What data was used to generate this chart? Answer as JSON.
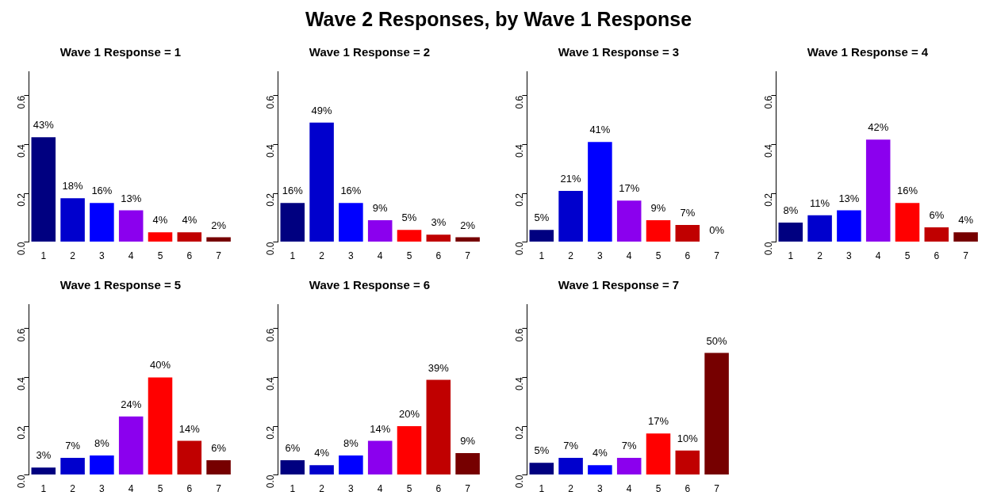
{
  "chart_data": [
    {
      "type": "other",
      "title": "Wave 2 Responses, by Wave 1 Response"
    },
    {
      "type": "bar",
      "title": "Wave 1 Response = 1",
      "categories": [
        "1",
        "2",
        "3",
        "4",
        "5",
        "6",
        "7"
      ],
      "values": [
        0.43,
        0.18,
        0.16,
        0.13,
        0.04,
        0.04,
        0.02
      ],
      "value_labels": [
        "43%",
        "18%",
        "16%",
        "13%",
        "4%",
        "4%",
        "2%"
      ],
      "colors": [
        "#000080",
        "#0000cd",
        "#0000ff",
        "#8b00ee",
        "#ff0000",
        "#c00000",
        "#760000"
      ],
      "ylim": [
        0,
        0.7
      ],
      "yticks": [
        {
          "value": 0,
          "label": "0.0"
        },
        {
          "value": 0.2,
          "label": "0.2"
        },
        {
          "value": 0.4,
          "label": "0.4"
        },
        {
          "value": 0.6,
          "label": "0.6"
        }
      ]
    },
    {
      "type": "bar",
      "title": "Wave 1 Response = 2",
      "categories": [
        "1",
        "2",
        "3",
        "4",
        "5",
        "6",
        "7"
      ],
      "values": [
        0.16,
        0.49,
        0.16,
        0.09,
        0.05,
        0.03,
        0.02
      ],
      "value_labels": [
        "16%",
        "49%",
        "16%",
        "9%",
        "5%",
        "3%",
        "2%"
      ],
      "colors": [
        "#000080",
        "#0000cd",
        "#0000ff",
        "#8b00ee",
        "#ff0000",
        "#c00000",
        "#760000"
      ],
      "ylim": [
        0,
        0.7
      ],
      "yticks": [
        {
          "value": 0,
          "label": "0.0"
        },
        {
          "value": 0.2,
          "label": "0.2"
        },
        {
          "value": 0.4,
          "label": "0.4"
        },
        {
          "value": 0.6,
          "label": "0.6"
        }
      ]
    },
    {
      "type": "bar",
      "title": "Wave 1 Response = 3",
      "categories": [
        "1",
        "2",
        "3",
        "4",
        "5",
        "6",
        "7"
      ],
      "values": [
        0.05,
        0.21,
        0.41,
        0.17,
        0.09,
        0.07,
        0
      ],
      "value_labels": [
        "5%",
        "21%",
        "41%",
        "17%",
        "9%",
        "7%",
        "0%"
      ],
      "colors": [
        "#000080",
        "#0000cd",
        "#0000ff",
        "#8b00ee",
        "#ff0000",
        "#c00000",
        "#760000"
      ],
      "ylim": [
        0,
        0.7
      ],
      "yticks": [
        {
          "value": 0,
          "label": "0.0"
        },
        {
          "value": 0.2,
          "label": "0.2"
        },
        {
          "value": 0.4,
          "label": "0.4"
        },
        {
          "value": 0.6,
          "label": "0.6"
        }
      ]
    },
    {
      "type": "bar",
      "title": "Wave 1 Response = 4",
      "categories": [
        "1",
        "2",
        "3",
        "4",
        "5",
        "6",
        "7"
      ],
      "values": [
        0.08,
        0.11,
        0.13,
        0.42,
        0.16,
        0.06,
        0.04
      ],
      "value_labels": [
        "8%",
        "11%",
        "13%",
        "42%",
        "16%",
        "6%",
        "4%"
      ],
      "colors": [
        "#000080",
        "#0000cd",
        "#0000ff",
        "#8b00ee",
        "#ff0000",
        "#c00000",
        "#760000"
      ],
      "ylim": [
        0,
        0.7
      ],
      "yticks": [
        {
          "value": 0,
          "label": "0.0"
        },
        {
          "value": 0.2,
          "label": "0.2"
        },
        {
          "value": 0.4,
          "label": "0.4"
        },
        {
          "value": 0.6,
          "label": "0.6"
        }
      ]
    },
    {
      "type": "bar",
      "title": "Wave 1 Response = 5",
      "categories": [
        "1",
        "2",
        "3",
        "4",
        "5",
        "6",
        "7"
      ],
      "values": [
        0.03,
        0.07,
        0.08,
        0.24,
        0.4,
        0.14,
        0.06
      ],
      "value_labels": [
        "3%",
        "7%",
        "8%",
        "24%",
        "40%",
        "14%",
        "6%"
      ],
      "colors": [
        "#000080",
        "#0000cd",
        "#0000ff",
        "#8b00ee",
        "#ff0000",
        "#c00000",
        "#760000"
      ],
      "ylim": [
        0,
        0.7
      ],
      "yticks": [
        {
          "value": 0,
          "label": "0.0"
        },
        {
          "value": 0.2,
          "label": "0.2"
        },
        {
          "value": 0.4,
          "label": "0.4"
        },
        {
          "value": 0.6,
          "label": "0.6"
        }
      ]
    },
    {
      "type": "bar",
      "title": "Wave 1 Response = 6",
      "categories": [
        "1",
        "2",
        "3",
        "4",
        "5",
        "6",
        "7"
      ],
      "values": [
        0.06,
        0.04,
        0.08,
        0.14,
        0.2,
        0.39,
        0.09
      ],
      "value_labels": [
        "6%",
        "4%",
        "8%",
        "14%",
        "20%",
        "39%",
        "9%"
      ],
      "colors": [
        "#000080",
        "#0000cd",
        "#0000ff",
        "#8b00ee",
        "#ff0000",
        "#c00000",
        "#760000"
      ],
      "ylim": [
        0,
        0.7
      ],
      "yticks": [
        {
          "value": 0,
          "label": "0.0"
        },
        {
          "value": 0.2,
          "label": "0.2"
        },
        {
          "value": 0.4,
          "label": "0.4"
        },
        {
          "value": 0.6,
          "label": "0.6"
        }
      ]
    },
    {
      "type": "bar",
      "title": "Wave 1 Response = 7",
      "categories": [
        "1",
        "2",
        "3",
        "4",
        "5",
        "6",
        "7"
      ],
      "values": [
        0.05,
        0.07,
        0.04,
        0.07,
        0.17,
        0.1,
        0.5
      ],
      "value_labels": [
        "5%",
        "7%",
        "4%",
        "7%",
        "17%",
        "10%",
        "50%"
      ],
      "colors": [
        "#000080",
        "#0000cd",
        "#0000ff",
        "#8b00ee",
        "#ff0000",
        "#c00000",
        "#760000"
      ],
      "ylim": [
        0,
        0.7
      ],
      "yticks": [
        {
          "value": 0,
          "label": "0.0"
        },
        {
          "value": 0.2,
          "label": "0.2"
        },
        {
          "value": 0.4,
          "label": "0.4"
        },
        {
          "value": 0.6,
          "label": "0.6"
        }
      ]
    }
  ]
}
